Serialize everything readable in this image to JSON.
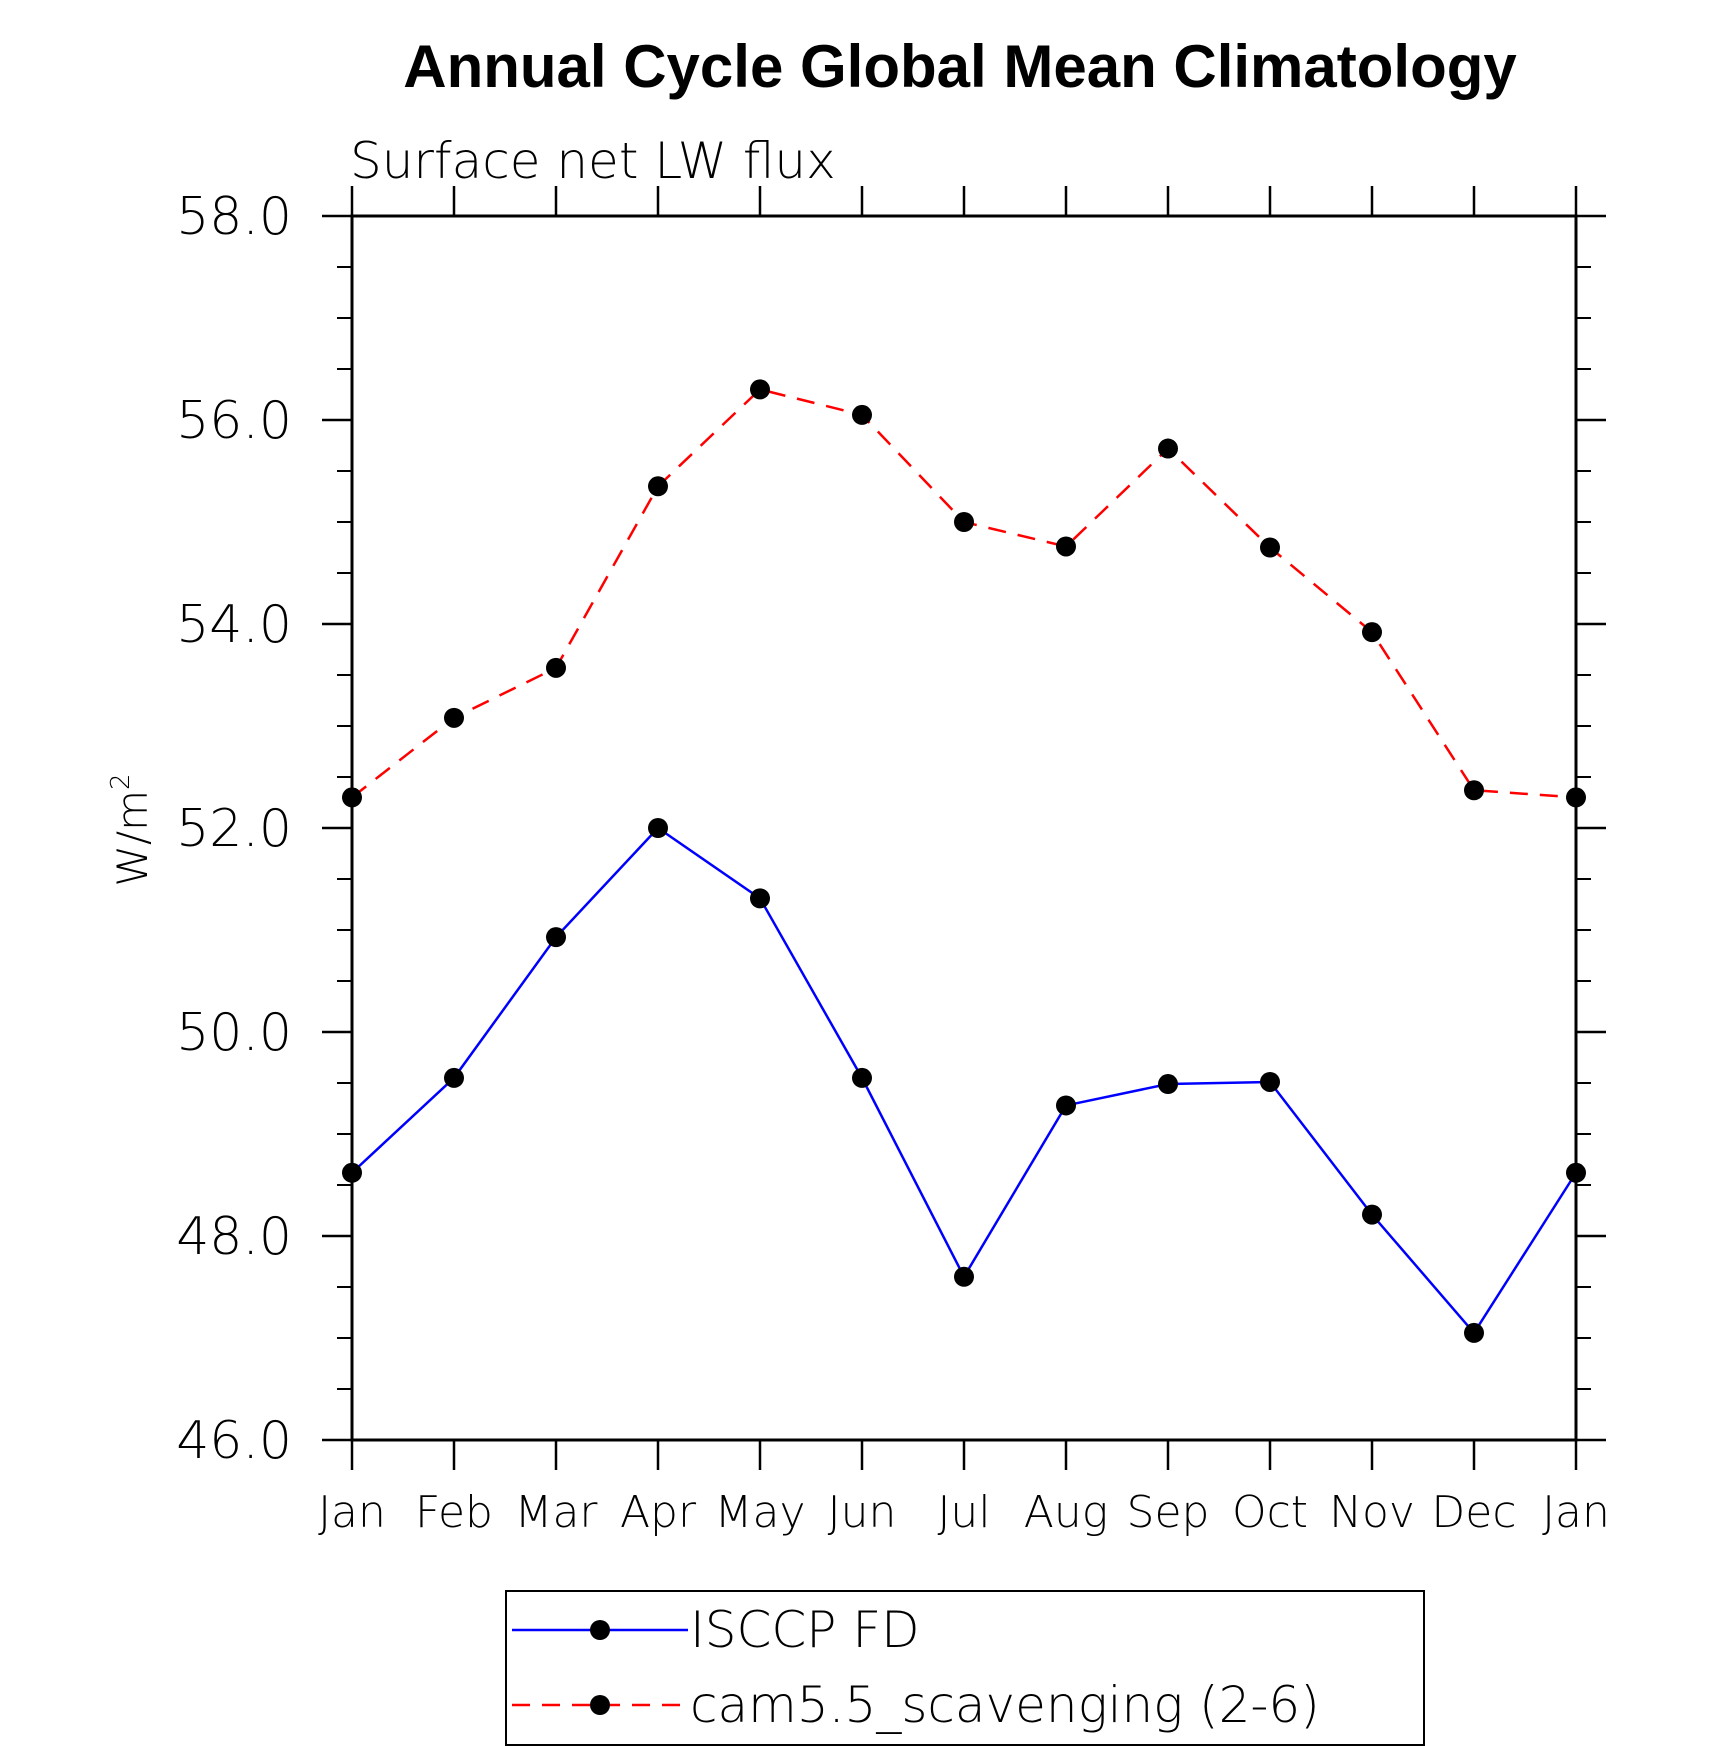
{
  "chart_data": {
    "type": "line",
    "title": "Annual Cycle Global Mean Climatology",
    "subtitle": "Surface net LW flux",
    "xlabel": "",
    "ylabel": "W/m",
    "ylabel_superscript": "2",
    "categories": [
      "Jan",
      "Feb",
      "Mar",
      "Apr",
      "May",
      "Jun",
      "Jul",
      "Aug",
      "Sep",
      "Oct",
      "Nov",
      "Dec",
      "Jan"
    ],
    "ylim": [
      46.0,
      58.0
    ],
    "y_ticks": [
      "46.0",
      "48.0",
      "50.0",
      "52.0",
      "54.0",
      "56.0",
      "58.0"
    ],
    "y_minor_step": 0.5,
    "grid": false,
    "legend_position": "bottom-center",
    "series": [
      {
        "name": "ISCCP FD",
        "color": "#0000ff",
        "dash": "solid",
        "marker": "filled-circle",
        "values": [
          48.62,
          49.55,
          50.93,
          52.0,
          51.31,
          49.55,
          47.6,
          49.28,
          49.49,
          49.51,
          48.21,
          47.05,
          48.62
        ]
      },
      {
        "name": "cam5.5_scavenging (2-6)",
        "color": "#ff0000",
        "dash": "dashed",
        "marker": "filled-circle",
        "values": [
          52.3,
          53.08,
          53.57,
          55.35,
          56.3,
          56.05,
          55.0,
          54.76,
          55.72,
          54.75,
          53.92,
          52.37,
          52.3
        ]
      }
    ]
  }
}
